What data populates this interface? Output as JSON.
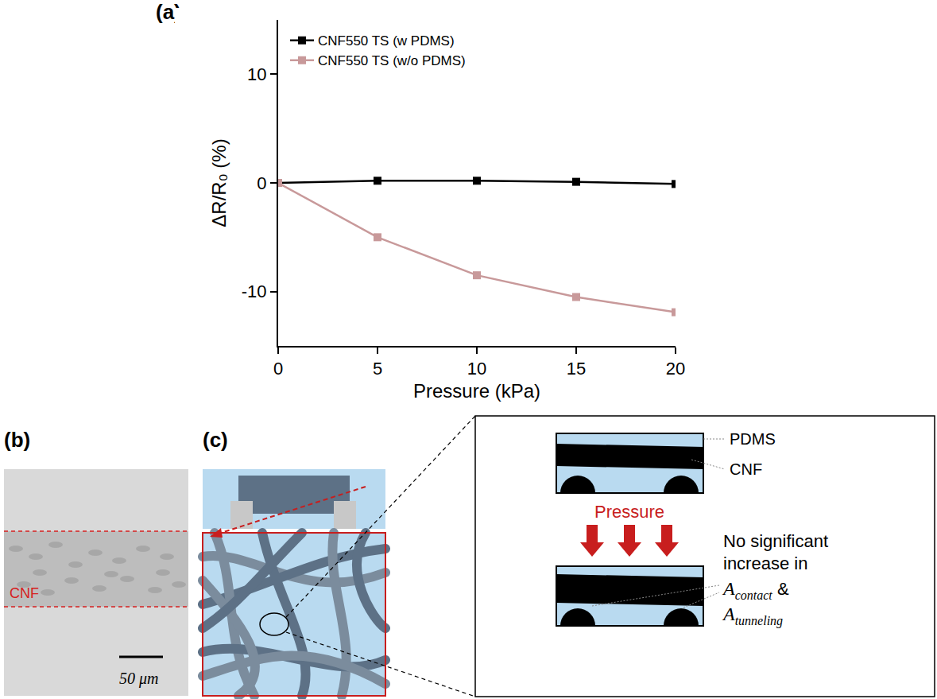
{
  "chart_data": {
    "type": "line",
    "panel_label": "(a)",
    "x": [
      0,
      5,
      10,
      15,
      20
    ],
    "series": [
      {
        "name": "CNF550 TS (w PDMS)",
        "color": "#000000",
        "marker": "square",
        "values": [
          0,
          0.2,
          0.2,
          0.1,
          -0.1
        ]
      },
      {
        "name": "CNF550 TS (w/o PDMS)",
        "color": "#c8999a",
        "marker": "square",
        "values": [
          0,
          -5,
          -8.5,
          -10.5,
          -11.9
        ]
      }
    ],
    "x_label": "Pressure (kPa)",
    "y_label": "ΔR/R₀ (%)",
    "xlim": [
      0,
      20
    ],
    "xticks": [
      0,
      5,
      10,
      15,
      20
    ],
    "ylim": [
      -15,
      15
    ],
    "yticks": [
      -10,
      0,
      10
    ],
    "grid": false,
    "legend": "upper left"
  },
  "panel_b": {
    "panel_label": "(b)",
    "band_label": "CNF",
    "scale_bar": "50 μm"
  },
  "panel_c": {
    "panel_label": "(c)",
    "layer_labels": [
      "PDMS",
      "CNF"
    ],
    "force_label": "Pressure",
    "callout_lines": [
      "No significant",
      "increase in"
    ],
    "callout_terms": [
      {
        "symbol": "A",
        "subscript": "contact"
      },
      {
        "symbol": "A",
        "subscript": "tunneling"
      }
    ],
    "joiner": "&"
  }
}
